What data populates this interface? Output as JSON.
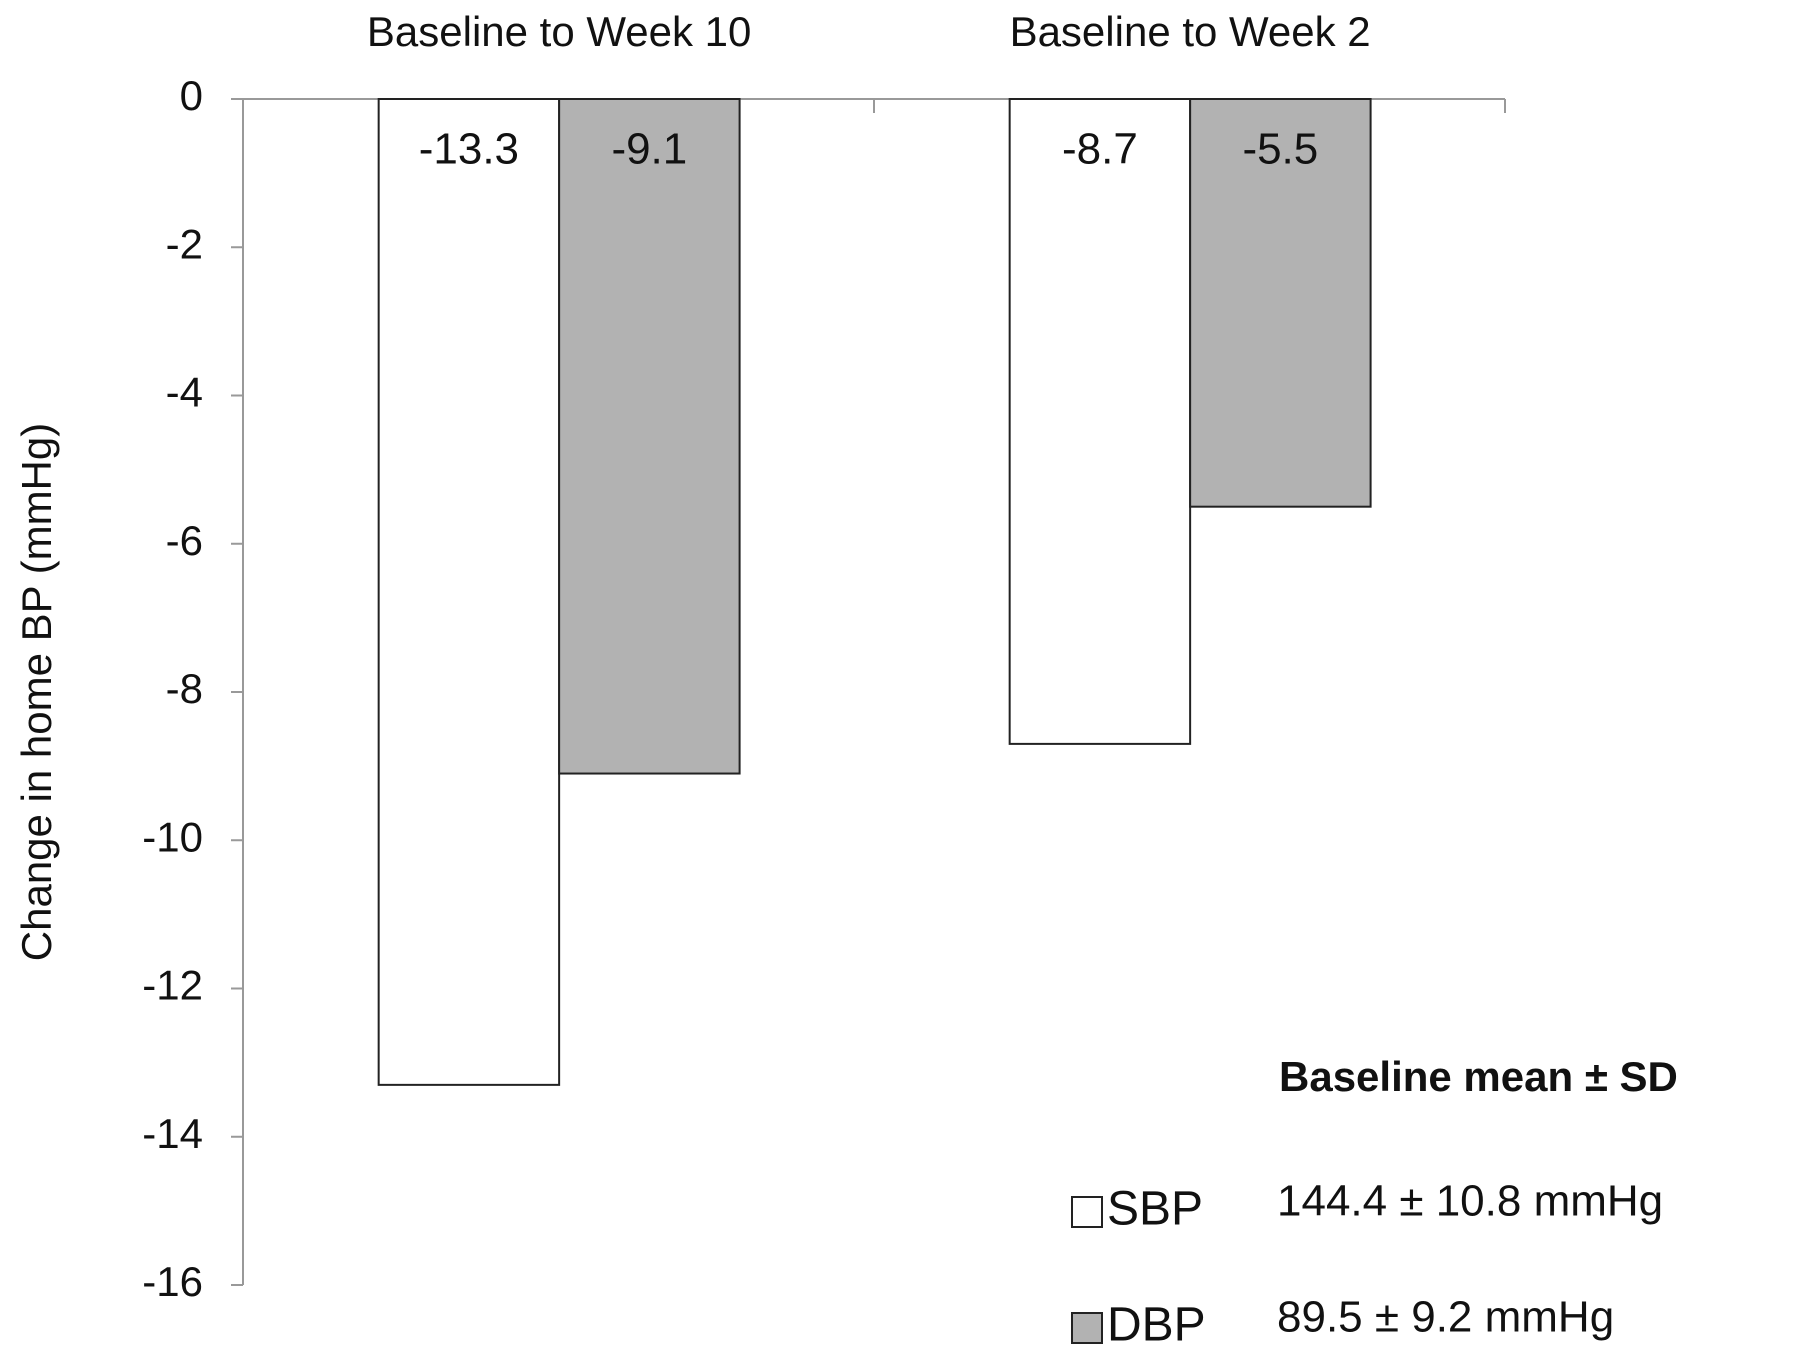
{
  "chart_data": {
    "type": "bar",
    "y_label": "Change in home BP (mmHg)",
    "categories": [
      "Baseline to Week 10",
      "Baseline to Week 2"
    ],
    "series": [
      {
        "name": "SBP",
        "color": "#ffffff",
        "values": [
          -13.3,
          -8.7
        ],
        "baseline": "144.4 ± 10.8 mmHg"
      },
      {
        "name": "DBP",
        "color": "#b2b2b2",
        "values": [
          -9.1,
          -5.5
        ],
        "baseline": "89.5 ± 9.2 mmHg"
      }
    ],
    "legend_title": "Baseline mean ± SD",
    "ylim": [
      -16,
      0
    ],
    "yticks": [
      0,
      -2,
      -4,
      -6,
      -8,
      -10,
      -12,
      -14,
      -16
    ],
    "legend_position": "lower right"
  }
}
